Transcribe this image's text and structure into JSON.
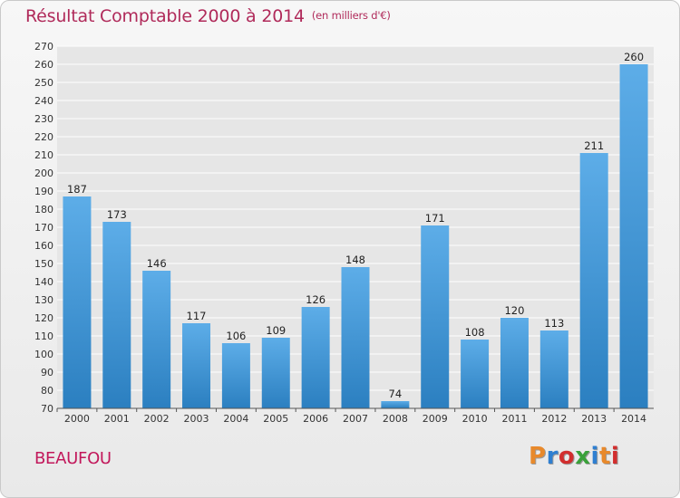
{
  "header": {
    "title": "Résultat Comptable 2000 à 2014",
    "subtitle": "(en milliers d'€)"
  },
  "footer": {
    "commune": "BEAUFOU",
    "logo_text": "Proxiti",
    "logo_colors": [
      "#e8892b",
      "#2f7fd1",
      "#d22e2e",
      "#3aa13a",
      "#2f7fd1",
      "#e8892b",
      "#d22e2e"
    ]
  },
  "colors": {
    "bar_light": "#5dade8",
    "bar_dark": "#2b7fc0",
    "title": "#b02a5a",
    "grid": "#ffffff",
    "plot_bg": "#e6e6e6"
  },
  "chart_data": {
    "type": "bar",
    "title": "Résultat Comptable 2000 à 2014",
    "subtitle": "(en milliers d'€)",
    "xlabel": "",
    "ylabel": "",
    "ylim": [
      70,
      270
    ],
    "ytick_step": 10,
    "grid": true,
    "categories": [
      "2000",
      "2001",
      "2002",
      "2003",
      "2004",
      "2005",
      "2006",
      "2007",
      "2008",
      "2009",
      "2010",
      "2011",
      "2012",
      "2013",
      "2014"
    ],
    "values": [
      187,
      173,
      146,
      117,
      106,
      109,
      126,
      148,
      74,
      171,
      108,
      120,
      113,
      211,
      260
    ]
  }
}
